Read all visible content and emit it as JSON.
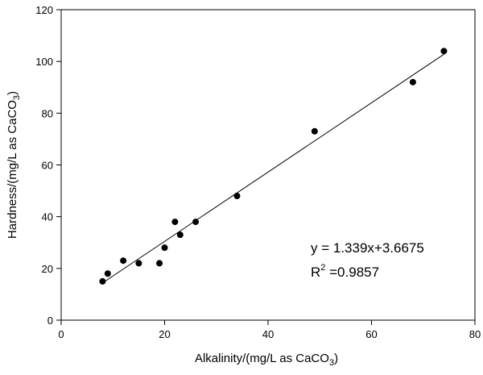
{
  "chart_data": {
    "type": "scatter",
    "x": [
      8,
      9,
      12,
      15,
      19,
      20,
      22,
      23,
      26,
      34,
      49,
      68,
      74
    ],
    "y": [
      15,
      18,
      23,
      22,
      22,
      28,
      38,
      33,
      38,
      48,
      73,
      92,
      104
    ],
    "fit": {
      "slope": 1.339,
      "intercept": 3.6675,
      "x_range": [
        8,
        74
      ]
    },
    "xlim": [
      0,
      80
    ],
    "ylim": [
      0,
      120
    ],
    "xticks": [
      "0",
      "20",
      "40",
      "60",
      "80"
    ],
    "yticks": [
      "0",
      "20",
      "40",
      "60",
      "80",
      "100",
      "120"
    ],
    "xlabel": {
      "main": "Alkalinity/(mg/L as CaCO",
      "sub": "3",
      "end": ")"
    },
    "ylabel": {
      "main": "Hardness/(mg/L as CaCO",
      "sub": "3",
      "end": ")"
    },
    "equation": "y = 1.339x+3.6675",
    "r2": {
      "label": "R",
      "sup": "2",
      "value": " =0.9857"
    },
    "grid": false,
    "colors": {
      "points": "#000000",
      "line": "#000000",
      "axes": "#000000"
    }
  }
}
